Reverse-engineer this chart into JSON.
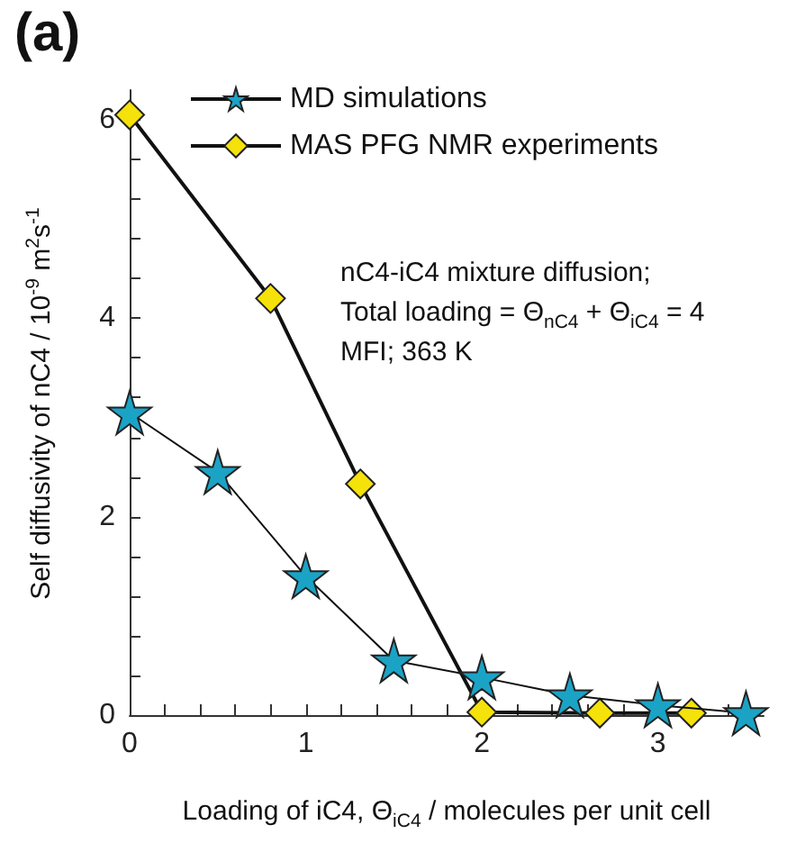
{
  "chart_data": {
    "type": "line",
    "title": "(a)",
    "xlabel": "Loading of iC4, Θ$_{iC4}$ / molecules per unit cell",
    "ylabel": "Self diffusivity of nC4 / 10$^{-9}$ m$^{2}$s$^{-1}$",
    "annotations": [
      "nC4-iC4 mixture diffusion;",
      "Total loading = Θ$_{nC4}$ + Θ$_{iC4}$ = 4",
      "MFI; 363 K"
    ],
    "series": [
      {
        "name": "MD simulations",
        "color": "#1ba3c6",
        "marker": "star",
        "x": [
          0,
          0.5,
          1,
          1.5,
          2,
          2.5,
          3,
          3.5
        ],
        "values": [
          3.05,
          2.45,
          1.4,
          0.55,
          0.38,
          0.2,
          0.1,
          0.02
        ]
      },
      {
        "name": "MAS PFG NMR experiments",
        "color": "#f5e20a",
        "marker": "diamond",
        "x": [
          0,
          0.8,
          1.31,
          2,
          2.67,
          3.19
        ],
        "values": [
          6.05,
          4.2,
          2.33,
          0.03,
          0.02,
          0.02
        ]
      }
    ],
    "xlim": [
      0,
      3.6
    ],
    "xticks": [
      0,
      {
        "value": 0.2,
        "label": null
      },
      {
        "value": 0.4,
        "label": null
      },
      {
        "value": 0.6,
        "label": null
      },
      {
        "value": 0.8,
        "label": null
      },
      1,
      {
        "value": 1.2,
        "label": null
      },
      {
        "value": 1.4,
        "label": null
      },
      {
        "value": 1.6,
        "label": null
      },
      {
        "value": 1.8,
        "label": null
      },
      2,
      {
        "value": 2.2,
        "label": null
      },
      {
        "value": 2.4,
        "label": null
      },
      {
        "value": 2.6,
        "label": null
      },
      {
        "value": 2.8,
        "label": null
      },
      3,
      {
        "value": 3.2,
        "label": null
      },
      {
        "value": 3.4,
        "label": null
      }
    ],
    "ylim": [
      0,
      6.3
    ],
    "yticks": [
      0,
      {
        "value": 0.4,
        "label": null
      },
      {
        "value": 0.8,
        "label": null
      },
      {
        "value": 1.2,
        "label": null
      },
      {
        "value": 1.6,
        "label": null
      },
      2,
      {
        "value": 2.4,
        "label": null
      },
      {
        "value": 2.8,
        "label": null
      },
      {
        "value": 3.2,
        "label": null
      },
      {
        "value": 3.6,
        "label": null
      },
      4,
      {
        "value": 4.4,
        "label": null
      },
      {
        "value": 4.8,
        "label": null
      },
      {
        "value": 5.2,
        "label": null
      },
      {
        "value": 5.6,
        "label": null
      },
      6
    ],
    "grid": false,
    "legend": "top right",
    "line_style": "solid"
  }
}
